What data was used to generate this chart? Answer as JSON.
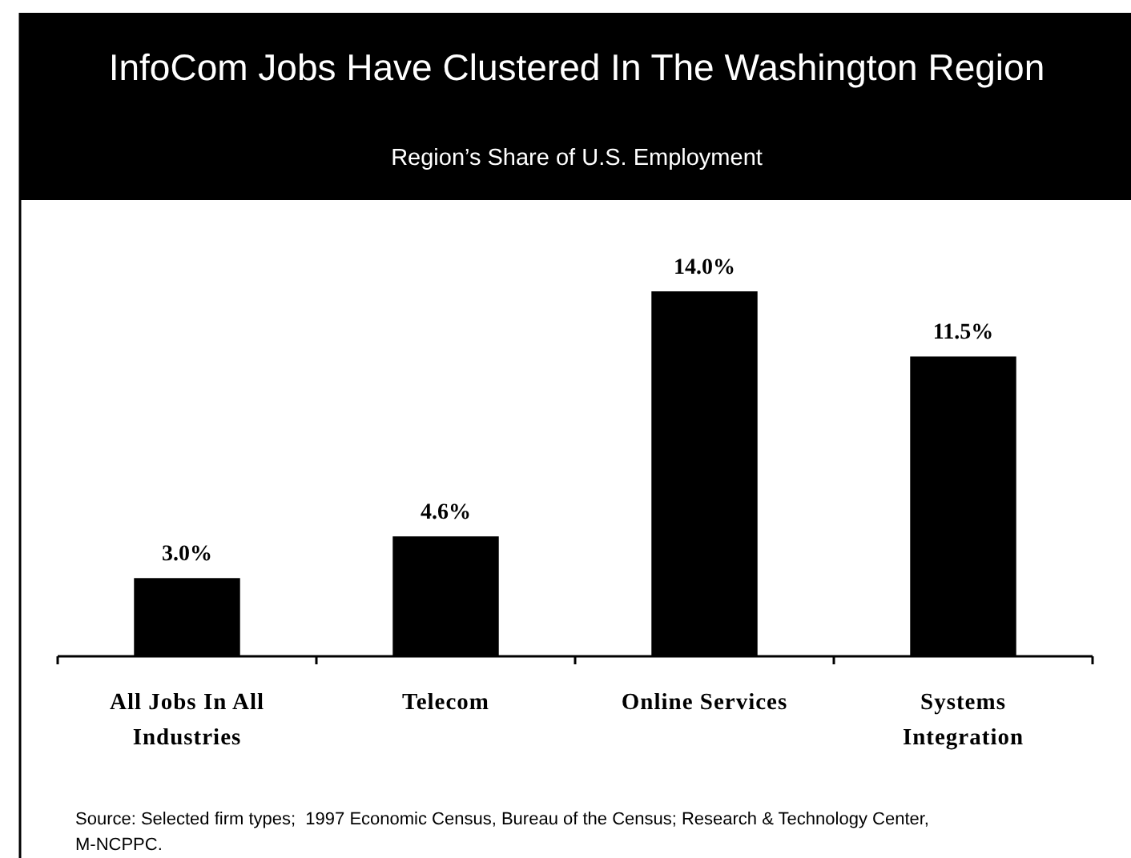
{
  "chart_data": {
    "type": "bar",
    "title": "InfoCom Jobs Have Clustered In The Washington Region",
    "subtitle": "Region’s Share of U.S. Employment",
    "categories": [
      "All Jobs In All Industries",
      "Telecom",
      "Online Services",
      "Systems Integration"
    ],
    "values": [
      3.0,
      4.6,
      14.0,
      11.5
    ],
    "color": "#000000",
    "value_labels": [
      "3.0%",
      "4.6%",
      "14.0%",
      "11.5%"
    ],
    "annotations": [
      "Source: Selected firm types;  1997 Economic Census, Bureau of the Census; Research & Technology Center, M-NCPPC."
    ]
  }
}
